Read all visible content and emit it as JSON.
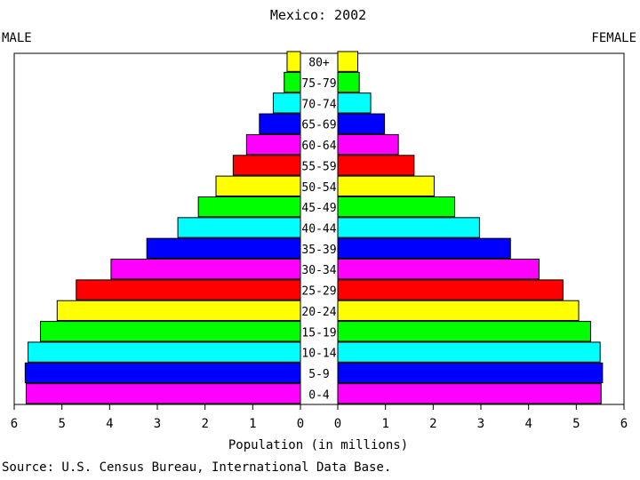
{
  "chart_data": {
    "type": "bar",
    "title": "Mexico: 2002",
    "left_label": "MALE",
    "right_label": "FEMALE",
    "xlabel": "Population (in millions)",
    "source": "Source: U.S. Census Bureau, International Data Base.",
    "xlim": [
      0,
      6
    ],
    "xticks": [
      "0",
      "1",
      "2",
      "3",
      "4",
      "5",
      "6"
    ],
    "grid": false,
    "categories": [
      "0-4",
      "5-9",
      "10-14",
      "15-19",
      "20-24",
      "25-29",
      "30-34",
      "35-39",
      "40-44",
      "45-49",
      "50-54",
      "55-59",
      "60-64",
      "65-69",
      "70-74",
      "75-79",
      "80+"
    ],
    "colors": [
      "#ff00ff",
      "#0000ff",
      "#00ffff",
      "#00ff00",
      "#ffff00",
      "#ff0000",
      "#ff00ff",
      "#0000ff",
      "#00ffff",
      "#00ff00",
      "#ffff00",
      "#ff0000",
      "#ff00ff",
      "#0000ff",
      "#00ffff",
      "#00ff00",
      "#ffff00"
    ],
    "series": [
      {
        "name": "MALE",
        "values": [
          5.75,
          5.77,
          5.71,
          5.45,
          5.1,
          4.7,
          3.97,
          3.22,
          2.57,
          2.14,
          1.77,
          1.41,
          1.13,
          0.86,
          0.57,
          0.34,
          0.28
        ]
      },
      {
        "name": "FEMALE",
        "values": [
          5.52,
          5.55,
          5.5,
          5.3,
          5.05,
          4.72,
          4.22,
          3.62,
          2.97,
          2.45,
          2.02,
          1.6,
          1.27,
          0.98,
          0.69,
          0.45,
          0.42
        ]
      }
    ]
  }
}
